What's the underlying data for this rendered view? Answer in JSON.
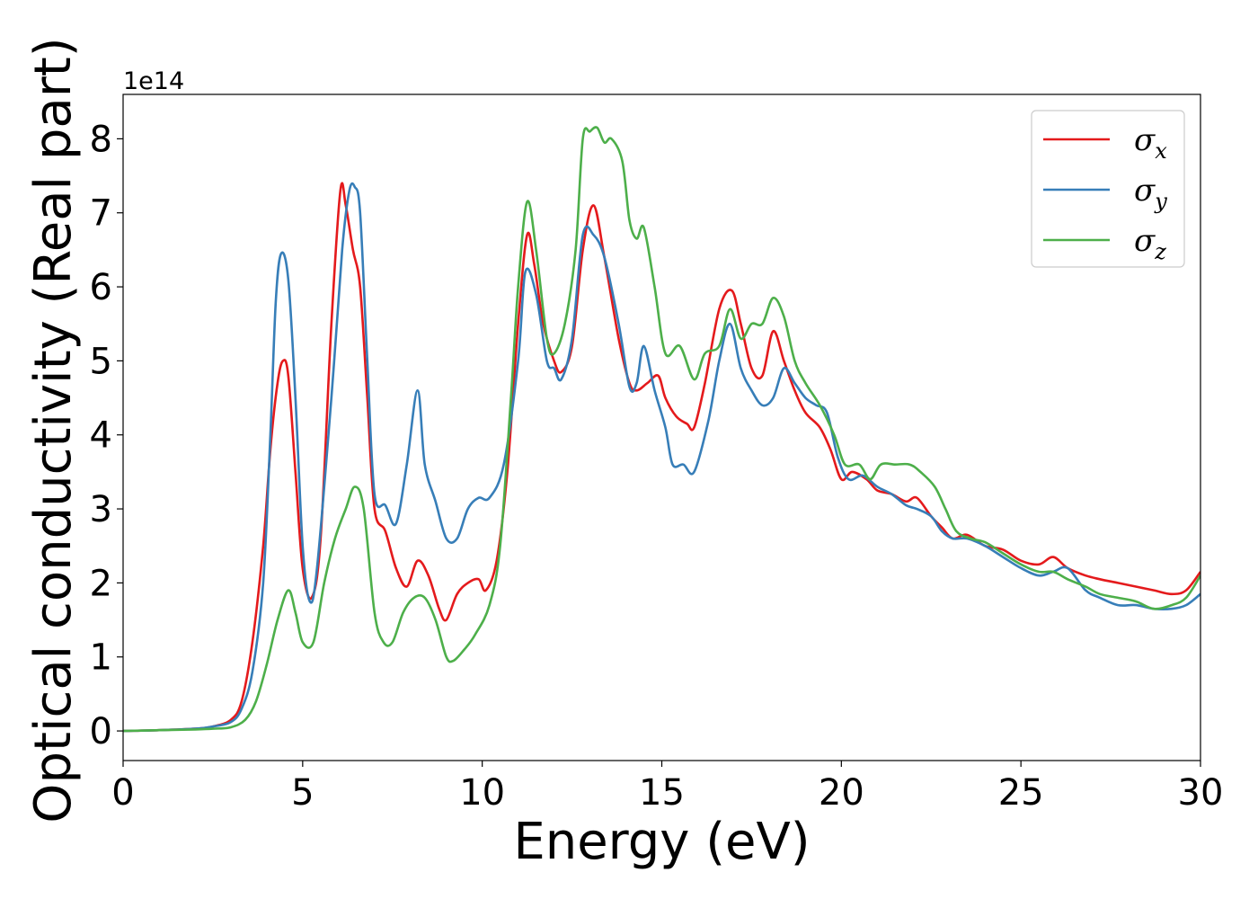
{
  "chart_data": {
    "type": "line",
    "title": "",
    "xlabel": "Energy (eV)",
    "ylabel": "Optical conductivity (Real part)",
    "y_offset_text": "1e14",
    "xlim": [
      0,
      30
    ],
    "ylim": [
      -0.4,
      8.6
    ],
    "xticks": [
      0,
      5,
      10,
      15,
      20,
      25,
      30
    ],
    "yticks": [
      0,
      1,
      2,
      3,
      4,
      5,
      6,
      7,
      8
    ],
    "grid": false,
    "legend_position": "top-right",
    "series": [
      {
        "name": "σx",
        "legend_symbol": "σ",
        "legend_subscript": "x",
        "color": "#e41a1c",
        "x": [
          0,
          1,
          2,
          2.5,
          3,
          3.3,
          3.6,
          3.9,
          4.1,
          4.3,
          4.45,
          4.6,
          4.8,
          5.0,
          5.25,
          5.5,
          5.8,
          6.05,
          6.2,
          6.4,
          6.6,
          6.8,
          7.0,
          7.3,
          7.6,
          7.9,
          8.2,
          8.5,
          8.8,
          9.0,
          9.3,
          9.6,
          9.9,
          10.1,
          10.4,
          10.7,
          11.0,
          11.25,
          11.45,
          11.7,
          12.0,
          12.2,
          12.5,
          12.8,
          13.1,
          13.4,
          13.8,
          14.1,
          14.3,
          14.6,
          14.9,
          15.1,
          15.4,
          15.7,
          15.9,
          16.2,
          16.6,
          16.95,
          17.2,
          17.5,
          17.8,
          18.1,
          18.4,
          18.7,
          19.0,
          19.4,
          19.7,
          20.0,
          20.3,
          20.7,
          21.0,
          21.4,
          21.8,
          22.1,
          22.5,
          22.8,
          23.1,
          23.5,
          24.0,
          24.5,
          25.0,
          25.5,
          25.9,
          26.3,
          26.8,
          27.2,
          27.7,
          28.2,
          28.7,
          29.2,
          29.6,
          30.0
        ],
        "y": [
          0,
          0.01,
          0.03,
          0.06,
          0.15,
          0.4,
          1.2,
          2.5,
          3.8,
          4.7,
          5.0,
          4.8,
          3.5,
          2.2,
          1.8,
          2.6,
          5.5,
          7.3,
          7.1,
          6.5,
          6.0,
          4.5,
          3.0,
          2.7,
          2.2,
          1.95,
          2.3,
          2.1,
          1.65,
          1.5,
          1.85,
          2.0,
          2.05,
          1.9,
          2.3,
          3.5,
          5.5,
          6.7,
          6.3,
          5.5,
          5.0,
          4.85,
          5.2,
          6.5,
          7.1,
          6.4,
          5.3,
          4.7,
          4.6,
          4.7,
          4.8,
          4.5,
          4.25,
          4.15,
          4.1,
          4.7,
          5.7,
          5.95,
          5.5,
          4.9,
          4.8,
          5.4,
          5.0,
          4.6,
          4.3,
          4.1,
          3.8,
          3.4,
          3.5,
          3.4,
          3.25,
          3.2,
          3.1,
          3.15,
          2.9,
          2.75,
          2.6,
          2.65,
          2.5,
          2.45,
          2.3,
          2.25,
          2.35,
          2.2,
          2.1,
          2.05,
          2.0,
          1.95,
          1.9,
          1.85,
          1.9,
          2.15
        ]
      },
      {
        "name": "σy",
        "legend_symbol": "σ",
        "legend_subscript": "y",
        "color": "#377eb8",
        "x": [
          0,
          1,
          2,
          2.5,
          3,
          3.3,
          3.6,
          3.9,
          4.1,
          4.25,
          4.4,
          4.6,
          4.8,
          5.0,
          5.2,
          5.4,
          5.8,
          6.1,
          6.3,
          6.45,
          6.6,
          6.8,
          7.0,
          7.3,
          7.6,
          7.9,
          8.2,
          8.4,
          8.7,
          9.0,
          9.3,
          9.6,
          9.9,
          10.2,
          10.6,
          11.0,
          11.2,
          11.5,
          11.8,
          12.0,
          12.2,
          12.5,
          12.8,
          13.1,
          13.4,
          13.8,
          14.1,
          14.3,
          14.5,
          14.8,
          15.1,
          15.3,
          15.6,
          15.9,
          16.3,
          16.6,
          16.9,
          17.2,
          17.5,
          17.8,
          18.1,
          18.4,
          18.7,
          19.0,
          19.3,
          19.6,
          19.9,
          20.2,
          20.6,
          21.0,
          21.4,
          21.8,
          22.1,
          22.5,
          22.8,
          23.1,
          23.5,
          24.0,
          24.5,
          25.0,
          25.5,
          25.9,
          26.3,
          26.8,
          27.2,
          27.7,
          28.2,
          28.7,
          29.2,
          29.6,
          30.0
        ],
        "y": [
          0,
          0.01,
          0.03,
          0.06,
          0.12,
          0.3,
          0.8,
          2.0,
          4.0,
          5.8,
          6.45,
          6.1,
          4.5,
          2.5,
          1.75,
          2.2,
          4.5,
          6.5,
          7.3,
          7.35,
          7.0,
          5.0,
          3.2,
          3.05,
          2.8,
          3.6,
          4.6,
          3.6,
          3.1,
          2.6,
          2.6,
          3.0,
          3.15,
          3.15,
          3.6,
          5.0,
          6.2,
          5.9,
          5.0,
          4.9,
          4.75,
          5.3,
          6.7,
          6.7,
          6.4,
          5.5,
          4.65,
          4.7,
          5.2,
          4.6,
          4.1,
          3.6,
          3.6,
          3.5,
          4.2,
          5.0,
          5.5,
          4.9,
          4.6,
          4.4,
          4.5,
          4.9,
          4.7,
          4.5,
          4.4,
          4.3,
          3.7,
          3.4,
          3.45,
          3.3,
          3.2,
          3.05,
          3.0,
          2.9,
          2.7,
          2.6,
          2.6,
          2.5,
          2.35,
          2.2,
          2.1,
          2.15,
          2.2,
          1.9,
          1.8,
          1.7,
          1.7,
          1.65,
          1.65,
          1.7,
          1.85
        ]
      },
      {
        "name": "σz",
        "legend_symbol": "σ",
        "legend_subscript": "z",
        "color": "#4daf4a",
        "x": [
          0,
          1,
          2,
          2.5,
          3,
          3.4,
          3.7,
          4.0,
          4.3,
          4.6,
          4.8,
          5.0,
          5.3,
          5.6,
          5.9,
          6.2,
          6.45,
          6.7,
          7.0,
          7.25,
          7.5,
          7.8,
          8.1,
          8.4,
          8.7,
          9.0,
          9.2,
          9.5,
          9.8,
          10.2,
          10.5,
          10.8,
          11.0,
          11.25,
          11.5,
          11.8,
          12.0,
          12.3,
          12.6,
          12.8,
          13.0,
          13.2,
          13.4,
          13.6,
          13.9,
          14.1,
          14.3,
          14.5,
          14.8,
          15.1,
          15.5,
          15.9,
          16.2,
          16.6,
          16.9,
          17.2,
          17.5,
          17.8,
          18.1,
          18.4,
          18.7,
          19.0,
          19.4,
          19.8,
          20.1,
          20.5,
          20.8,
          21.1,
          21.5,
          21.9,
          22.2,
          22.6,
          22.9,
          23.2,
          23.6,
          24.0,
          24.5,
          25.0,
          25.5,
          25.9,
          26.3,
          26.8,
          27.2,
          27.7,
          28.2,
          28.7,
          29.2,
          29.6,
          30.0
        ],
        "y": [
          0,
          0.01,
          0.02,
          0.03,
          0.05,
          0.15,
          0.4,
          0.9,
          1.5,
          1.9,
          1.6,
          1.2,
          1.2,
          2.0,
          2.6,
          3.0,
          3.3,
          3.0,
          1.6,
          1.2,
          1.2,
          1.6,
          1.8,
          1.8,
          1.5,
          1.0,
          0.95,
          1.1,
          1.3,
          1.7,
          2.5,
          4.5,
          6.0,
          7.15,
          6.5,
          5.3,
          5.1,
          5.5,
          6.5,
          8.0,
          8.1,
          8.15,
          7.95,
          8.0,
          7.7,
          6.9,
          6.65,
          6.8,
          6.0,
          5.1,
          5.2,
          4.75,
          5.1,
          5.2,
          5.7,
          5.3,
          5.5,
          5.5,
          5.85,
          5.6,
          5.0,
          4.7,
          4.4,
          4.0,
          3.6,
          3.6,
          3.4,
          3.6,
          3.6,
          3.6,
          3.5,
          3.3,
          3.0,
          2.7,
          2.6,
          2.55,
          2.4,
          2.25,
          2.15,
          2.15,
          2.05,
          1.95,
          1.85,
          1.8,
          1.75,
          1.65,
          1.7,
          1.8,
          2.1
        ]
      }
    ]
  }
}
